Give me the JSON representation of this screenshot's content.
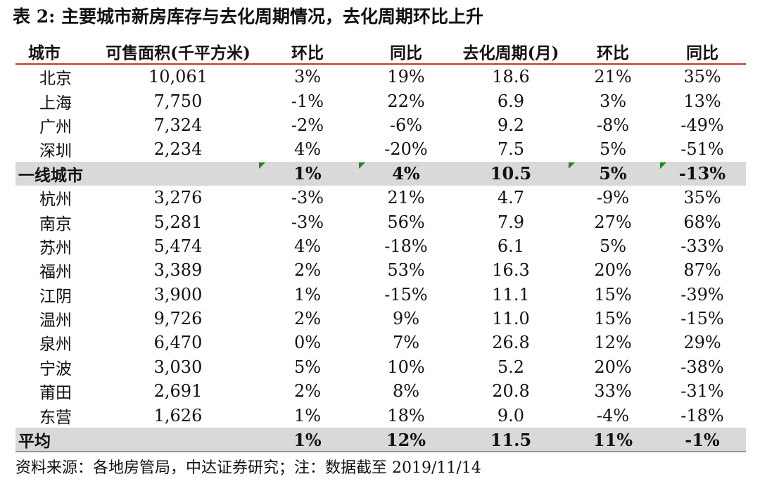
{
  "title": "表 2: 主要城市新房库存与去化周期情况，去化周期环比上升",
  "headers": [
    "城市",
    "可售面积(千平方米)",
    "环比",
    "同比",
    "去化周期(月)",
    "环比",
    "同比"
  ],
  "rows": [
    [
      "北京",
      "10,061",
      "3%",
      "19%",
      "18.6",
      "21%",
      "35%"
    ],
    [
      "上海",
      "7,750",
      "-1%",
      "22%",
      "6.9",
      "3%",
      "13%"
    ],
    [
      "广州",
      "7,324",
      "-2%",
      "-6%",
      "9.2",
      "-8%",
      "-49%"
    ],
    [
      "深圳",
      "2,234",
      "4%",
      "-20%",
      "7.5",
      "5%",
      "-51%"
    ],
    [
      "一线城市",
      "",
      "1%",
      "4%",
      "10.5",
      "5%",
      "-13%"
    ],
    [
      "杭州",
      "3,276",
      "-3%",
      "21%",
      "4.7",
      "-9%",
      "35%"
    ],
    [
      "南京",
      "5,281",
      "-3%",
      "56%",
      "7.9",
      "27%",
      "68%"
    ],
    [
      "苏州",
      "5,474",
      "4%",
      "-18%",
      "6.1",
      "5%",
      "-33%"
    ],
    [
      "福州",
      "3,389",
      "2%",
      "53%",
      "16.3",
      "20%",
      "87%"
    ],
    [
      "江阴",
      "3,900",
      "1%",
      "-15%",
      "11.1",
      "15%",
      "-39%"
    ],
    [
      "温州",
      "9,726",
      "2%",
      "9%",
      "11.0",
      "15%",
      "-15%"
    ],
    [
      "泉州",
      "6,470",
      "0%",
      "7%",
      "26.8",
      "12%",
      "29%"
    ],
    [
      "宁波",
      "3,030",
      "5%",
      "10%",
      "5.2",
      "20%",
      "-38%"
    ],
    [
      "莆田",
      "2,691",
      "2%",
      "8%",
      "20.8",
      "33%",
      "-31%"
    ],
    [
      "东营",
      "1,626",
      "1%",
      "18%",
      "9.0",
      "-4%",
      "-18%"
    ],
    [
      "平均",
      "",
      "1%",
      "12%",
      "11.5",
      "11%",
      "-1%"
    ]
  ],
  "footer": "资料来源：各地房管局，中达证券研究；注：数据截至 2019/11/14",
  "colors": {
    "header_rule": "#c0392b",
    "summary_row_bg": "#d9d9d9",
    "comment_marker": "#1a8a1a"
  }
}
